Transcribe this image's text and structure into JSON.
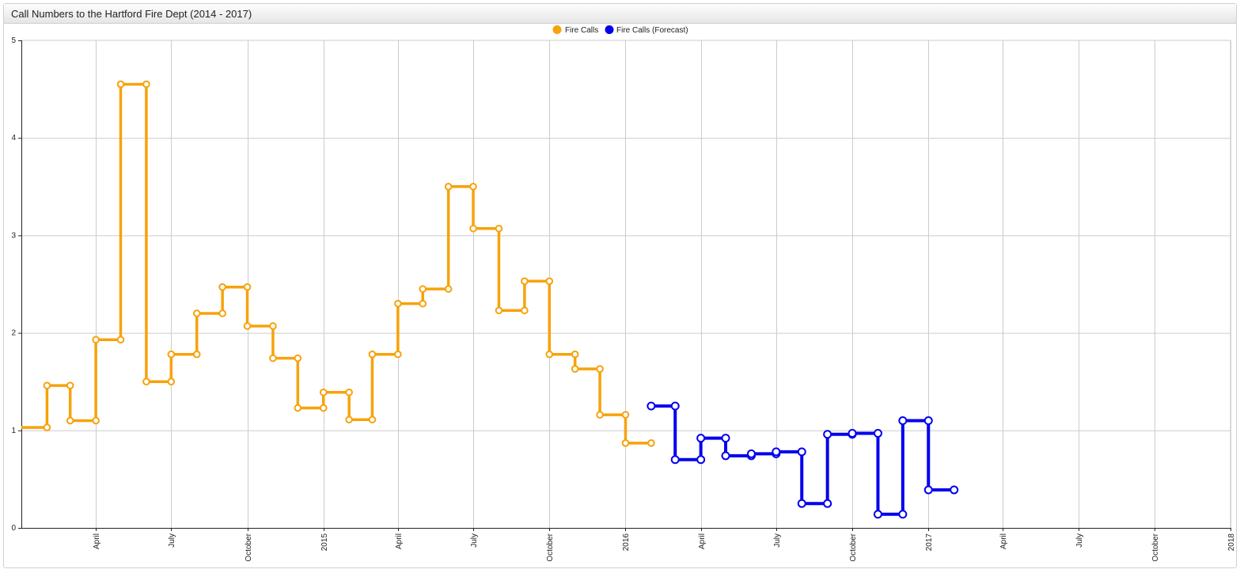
{
  "panel": {
    "title": "Call Numbers to the Hartford Fire Dept (2014 - 2017)"
  },
  "colors": {
    "fire_calls": "#f7a20b",
    "forecast": "#0000ee",
    "grid": "#cccccc",
    "axis": "#222222"
  },
  "chart_data": {
    "type": "line",
    "line_style": "step",
    "title": "",
    "xlabel": "",
    "ylabel": "",
    "xlim": [
      "2014-01-01",
      "2018-01-01"
    ],
    "ylim": [
      0,
      5
    ],
    "y_ticks": [
      0,
      1,
      2,
      3,
      4,
      5
    ],
    "x_ticks": [
      {
        "date": "2014-04-01",
        "label": "April"
      },
      {
        "date": "2014-07-01",
        "label": "July"
      },
      {
        "date": "2014-10-01",
        "label": "October"
      },
      {
        "date": "2015-01-01",
        "label": "2015"
      },
      {
        "date": "2015-04-01",
        "label": "April"
      },
      {
        "date": "2015-07-01",
        "label": "July"
      },
      {
        "date": "2015-10-01",
        "label": "October"
      },
      {
        "date": "2016-01-01",
        "label": "2016"
      },
      {
        "date": "2016-04-01",
        "label": "April"
      },
      {
        "date": "2016-07-01",
        "label": "July"
      },
      {
        "date": "2016-10-01",
        "label": "October"
      },
      {
        "date": "2017-01-01",
        "label": "2017"
      },
      {
        "date": "2017-04-01",
        "label": "April"
      },
      {
        "date": "2017-07-01",
        "label": "July"
      },
      {
        "date": "2017-10-01",
        "label": "October"
      },
      {
        "date": "2018-01-01",
        "label": "2018"
      }
    ],
    "grid": true,
    "legend_position": "top-center",
    "series": [
      {
        "name": "Fire Calls",
        "points": [
          {
            "x": "2014-01-01",
            "y": 1.03
          },
          {
            "x": "2014-02-01",
            "y": 1.46
          },
          {
            "x": "2014-03-01",
            "y": 1.1
          },
          {
            "x": "2014-04-01",
            "y": 1.93
          },
          {
            "x": "2014-05-01",
            "y": 4.55
          },
          {
            "x": "2014-06-01",
            "y": 1.5
          },
          {
            "x": "2014-07-01",
            "y": 1.78
          },
          {
            "x": "2014-08-01",
            "y": 2.2
          },
          {
            "x": "2014-09-01",
            "y": 2.47
          },
          {
            "x": "2014-10-01",
            "y": 2.07
          },
          {
            "x": "2014-11-01",
            "y": 1.74
          },
          {
            "x": "2014-12-01",
            "y": 1.23
          },
          {
            "x": "2015-01-01",
            "y": 1.39
          },
          {
            "x": "2015-02-01",
            "y": 1.11
          },
          {
            "x": "2015-03-01",
            "y": 1.78
          },
          {
            "x": "2015-04-01",
            "y": 2.3
          },
          {
            "x": "2015-05-01",
            "y": 2.45
          },
          {
            "x": "2015-06-01",
            "y": 3.5
          },
          {
            "x": "2015-07-01",
            "y": 3.07
          },
          {
            "x": "2015-08-01",
            "y": 2.23
          },
          {
            "x": "2015-09-01",
            "y": 2.53
          },
          {
            "x": "2015-10-01",
            "y": 1.78
          },
          {
            "x": "2015-11-01",
            "y": 1.63
          },
          {
            "x": "2015-12-01",
            "y": 1.16
          },
          {
            "x": "2016-01-01",
            "y": 0.87
          }
        ]
      },
      {
        "name": "Fire Calls (Forecast)",
        "points": [
          {
            "x": "2016-02-01",
            "y": 1.25
          },
          {
            "x": "2016-03-01",
            "y": 0.7
          },
          {
            "x": "2016-04-01",
            "y": 0.92
          },
          {
            "x": "2016-05-01",
            "y": 0.74
          },
          {
            "x": "2016-06-01",
            "y": 0.76
          },
          {
            "x": "2016-07-01",
            "y": 0.78
          },
          {
            "x": "2016-08-01",
            "y": 0.25
          },
          {
            "x": "2016-09-01",
            "y": 0.96
          },
          {
            "x": "2016-10-01",
            "y": 0.97
          },
          {
            "x": "2016-11-01",
            "y": 0.14
          },
          {
            "x": "2016-12-01",
            "y": 1.1
          },
          {
            "x": "2017-01-01",
            "y": 0.39
          }
        ]
      }
    ]
  }
}
